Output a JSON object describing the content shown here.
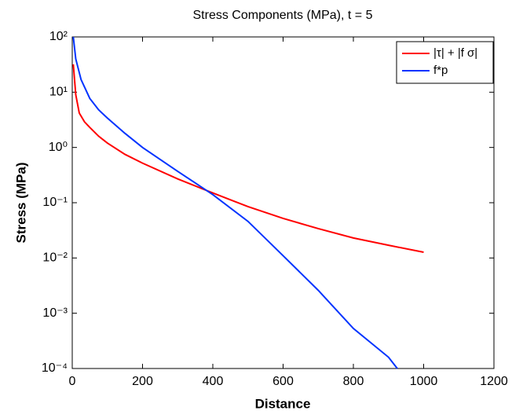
{
  "chart_data": {
    "type": "line",
    "title": "Stress Components (MPa), t = 5",
    "xlabel": "Distance",
    "ylabel": "Stress (MPa)",
    "xlim": [
      0,
      1200
    ],
    "xticks": [
      0,
      200,
      400,
      600,
      800,
      1000,
      1200
    ],
    "ylim": [
      0.0001,
      100
    ],
    "log_y": true,
    "yticks": [
      {
        "value": 0.0001,
        "label": "10⁻⁴"
      },
      {
        "value": 0.001,
        "label": "10⁻³"
      },
      {
        "value": 0.01,
        "label": "10⁻²"
      },
      {
        "value": 0.1,
        "label": "10⁻¹"
      },
      {
        "value": 1,
        "label": "10⁰"
      },
      {
        "value": 10,
        "label": "10¹"
      },
      {
        "value": 100,
        "label": "10²"
      }
    ],
    "legend": "upper right",
    "series": [
      {
        "name": "|τ| + |f σ|",
        "color": "#ff0000",
        "x": [
          3,
          10,
          20,
          35,
          50,
          75,
          100,
          150,
          200,
          300,
          400,
          500,
          600,
          700,
          800,
          900,
          1000
        ],
        "values": [
          32,
          9,
          4.2,
          2.9,
          2.3,
          1.6,
          1.2,
          0.75,
          0.52,
          0.27,
          0.15,
          0.085,
          0.052,
          0.034,
          0.023,
          0.017,
          0.0127
        ]
      },
      {
        "name": "f*p",
        "color": "#0033ff",
        "x": [
          3,
          10,
          25,
          50,
          75,
          100,
          150,
          200,
          300,
          400,
          500,
          600,
          700,
          800,
          900,
          925
        ],
        "values": [
          100,
          40,
          17,
          7.7,
          4.8,
          3.4,
          1.8,
          1.0,
          0.37,
          0.14,
          0.046,
          0.011,
          0.0026,
          0.00053,
          0.00016,
          0.0001
        ]
      }
    ]
  }
}
